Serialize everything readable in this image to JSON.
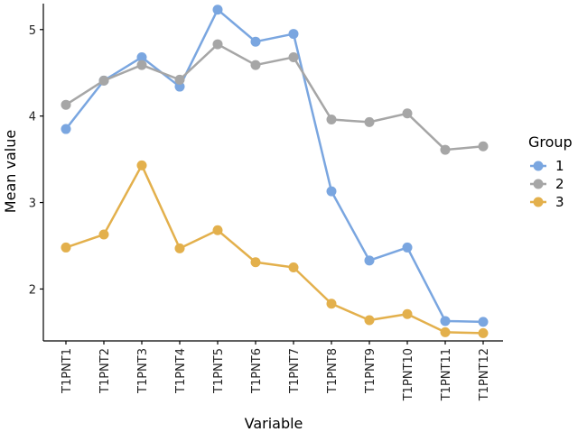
{
  "chart_data": {
    "type": "line",
    "xlabel": "Variable",
    "ylabel": "Mean value",
    "categories": [
      "T1PNT1",
      "T1PNT2",
      "T1PNT3",
      "T1PNT4",
      "T1PNT5",
      "T1PNT6",
      "T1PNT7",
      "T1PNT8",
      "T1PNT9",
      "T1PNT10",
      "T1PNT11",
      "T1PNT12"
    ],
    "ylim": [
      1.4,
      5.3
    ],
    "yticks": [
      2,
      3,
      4,
      5
    ],
    "grid": false,
    "legend": {
      "title": "Group",
      "position": "right"
    },
    "series": [
      {
        "name": "1",
        "color": "#7aa6e0",
        "values": [
          3.85,
          4.41,
          4.68,
          4.34,
          5.23,
          4.86,
          4.95,
          3.13,
          2.33,
          2.48,
          1.63,
          1.62
        ]
      },
      {
        "name": "2",
        "color": "#a6a6a6",
        "values": [
          4.13,
          4.41,
          4.59,
          4.42,
          4.83,
          4.59,
          4.68,
          3.96,
          3.93,
          4.03,
          3.61,
          3.65
        ]
      },
      {
        "name": "3",
        "color": "#e3b04c",
        "values": [
          2.48,
          2.63,
          3.43,
          2.47,
          2.68,
          2.31,
          2.25,
          1.83,
          1.64,
          1.71,
          1.5,
          1.49
        ]
      }
    ]
  }
}
